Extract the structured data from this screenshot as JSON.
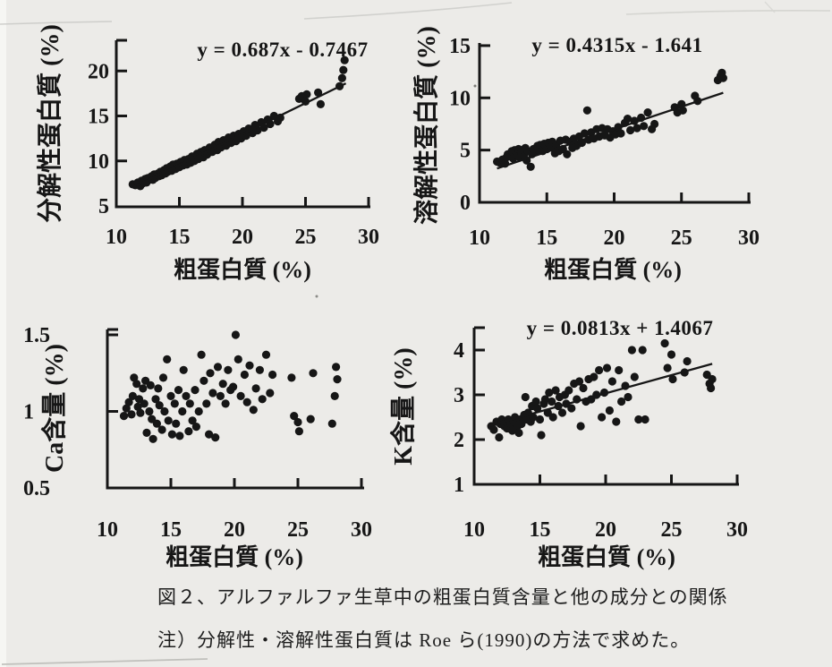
{
  "page": {
    "background": "#ecebe8",
    "ink": "#161616"
  },
  "figure": {
    "caption": "図２、アルファルファ生草中の粗蛋白質含量と他の成分との関係",
    "note": "注）分解性・溶解性蛋白質は Roe ら(1990)の方法で求めた。"
  },
  "chart_data": [
    {
      "type": "scatter",
      "title": "y = 0.687x - 0.7467",
      "xlabel": "粗蛋白質 (%)",
      "ylabel": "分解性蛋白質 (%)",
      "xlim": [
        10,
        30
      ],
      "ylim": [
        5,
        20
      ],
      "grid": false,
      "xticks": {
        "values": [
          10,
          15,
          20,
          25,
          30
        ],
        "labels": [
          "10",
          "15",
          "20",
          "25",
          "30"
        ]
      },
      "yticks": {
        "values": [
          5,
          10,
          15,
          20
        ],
        "labels": [
          "5",
          "10",
          "15",
          "20"
        ]
      },
      "x": [
        11.3,
        11.5,
        11.7,
        11.9,
        12.0,
        12.1,
        12.3,
        12.4,
        12.5,
        12.6,
        12.8,
        12.9,
        13.0,
        13.1,
        13.3,
        13.4,
        13.5,
        13.6,
        13.8,
        13.9,
        14.0,
        14.1,
        14.3,
        14.4,
        14.5,
        14.7,
        14.8,
        15.0,
        15.1,
        15.3,
        15.4,
        15.6,
        15.7,
        15.9,
        16.0,
        16.2,
        16.4,
        16.5,
        16.7,
        16.9,
        17.0,
        17.2,
        17.4,
        17.6,
        17.8,
        18.0,
        18.1,
        18.3,
        18.5,
        18.7,
        18.9,
        19.1,
        19.3,
        19.5,
        19.7,
        19.9,
        20.1,
        20.3,
        20.5,
        20.8,
        21.0,
        21.2,
        21.5,
        21.7,
        22.0,
        22.2,
        22.5,
        22.8,
        23.0,
        24.5,
        24.7,
        25.0,
        25.1,
        26.0,
        26.2,
        27.7,
        27.9,
        28.0,
        28.1
      ],
      "y": [
        7.4,
        7.3,
        7.6,
        7.2,
        7.8,
        7.5,
        8.0,
        7.6,
        8.1,
        7.9,
        8.3,
        7.9,
        8.5,
        8.1,
        8.6,
        8.3,
        8.8,
        8.4,
        9.0,
        8.6,
        9.2,
        8.8,
        9.4,
        8.9,
        9.6,
        9.1,
        9.7,
        9.3,
        9.9,
        9.5,
        10.1,
        9.6,
        10.2,
        9.8,
        10.5,
        10.0,
        10.8,
        10.2,
        11.0,
        10.4,
        11.2,
        10.7,
        11.5,
        11.0,
        11.8,
        11.2,
        12.1,
        11.5,
        12.3,
        11.7,
        12.6,
        12.0,
        12.8,
        12.2,
        13.0,
        12.5,
        13.3,
        12.8,
        13.6,
        13.1,
        14.0,
        13.4,
        14.3,
        13.7,
        14.6,
        14.1,
        15.0,
        14.4,
        14.8,
        16.9,
        17.2,
        16.6,
        17.4,
        17.6,
        16.3,
        18.3,
        19.2,
        20.1,
        21.2
      ],
      "trendline": {
        "equation": "y = 0.687x - 0.7467",
        "slope": 0.687,
        "intercept": -0.7467,
        "x_start": 11.6,
        "x_end": 28.2
      },
      "marker_color": "#161616"
    },
    {
      "type": "scatter",
      "title": "y = 0.4315x - 1.641",
      "xlabel": "粗蛋白質 (%)",
      "ylabel": "溶解性蛋白質 (%)",
      "xlim": [
        10,
        30
      ],
      "ylim": [
        0,
        15
      ],
      "grid": false,
      "xticks": {
        "values": [
          10,
          15,
          20,
          25,
          30
        ],
        "labels": [
          "10",
          "15",
          "20",
          "25",
          "30"
        ]
      },
      "yticks": {
        "values": [
          0,
          5,
          10,
          15
        ],
        "labels": [
          "0",
          "5",
          "10",
          "15"
        ]
      },
      "x": [
        11.3,
        11.5,
        11.7,
        11.9,
        12.0,
        12.1,
        12.3,
        12.4,
        12.5,
        12.6,
        12.8,
        12.9,
        13.0,
        13.1,
        13.3,
        13.4,
        13.5,
        13.6,
        13.8,
        13.9,
        14.0,
        14.1,
        14.3,
        14.4,
        14.5,
        14.7,
        14.8,
        15.0,
        15.1,
        15.3,
        15.4,
        15.6,
        15.7,
        15.9,
        16.0,
        16.2,
        16.4,
        16.5,
        16.7,
        16.9,
        17.0,
        17.2,
        17.4,
        17.6,
        17.8,
        18.0,
        18.1,
        18.3,
        18.5,
        18.7,
        18.9,
        19.1,
        19.3,
        19.5,
        19.7,
        19.9,
        20.1,
        20.3,
        20.5,
        20.8,
        21.0,
        21.2,
        21.5,
        21.7,
        22.0,
        22.2,
        22.5,
        22.8,
        23.0,
        24.5,
        24.7,
        25.0,
        25.1,
        26.0,
        26.2,
        27.7,
        27.9,
        28.0,
        28.1
      ],
      "y": [
        3.9,
        3.8,
        4.1,
        3.7,
        4.3,
        4.6,
        4.4,
        4.9,
        4.2,
        5.0,
        4.5,
        5.1,
        4.3,
        4.8,
        4.4,
        5.2,
        4.0,
        4.9,
        3.4,
        4.6,
        5.1,
        4.8,
        5.4,
        5.0,
        5.5,
        4.9,
        5.6,
        5.1,
        5.7,
        5.3,
        5.8,
        4.7,
        5.5,
        4.9,
        5.9,
        5.1,
        6.0,
        4.6,
        5.8,
        5.2,
        6.1,
        5.4,
        6.3,
        5.7,
        6.6,
        8.8,
        6.0,
        6.7,
        6.1,
        7.0,
        6.3,
        7.1,
        6.4,
        7.0,
        6.2,
        6.8,
        6.5,
        7.2,
        6.6,
        7.6,
        8.0,
        6.9,
        7.8,
        7.1,
        8.1,
        7.3,
        8.6,
        7.0,
        7.5,
        9.1,
        8.6,
        9.4,
        8.8,
        10.2,
        9.7,
        11.7,
        12.1,
        12.4,
        11.9
      ],
      "trendline": {
        "equation": "y = 0.4315x - 1.641",
        "slope": 0.4315,
        "intercept": -1.641,
        "x_start": 11.3,
        "x_end": 28.1
      },
      "marker_color": "#161616"
    },
    {
      "type": "scatter",
      "title": "",
      "xlabel": "粗蛋白質 (%)",
      "ylabel": "Ca含量 (%)",
      "xlim": [
        10,
        30
      ],
      "ylim": [
        0.5,
        1.5
      ],
      "grid": false,
      "xticks": {
        "values": [
          10,
          15,
          20,
          25,
          30
        ],
        "labels": [
          "10",
          "15",
          "20",
          "25",
          "30"
        ]
      },
      "yticks": {
        "values": [
          0.5,
          1,
          1.5
        ],
        "labels": [
          "0.5",
          "1",
          "1.5"
        ]
      },
      "x": [
        11.3,
        11.5,
        11.7,
        11.9,
        12.0,
        12.1,
        12.3,
        12.4,
        12.5,
        12.6,
        12.8,
        12.9,
        13.0,
        13.1,
        13.3,
        13.4,
        13.5,
        13.6,
        13.8,
        13.9,
        14.0,
        14.1,
        14.3,
        14.4,
        14.5,
        14.7,
        14.8,
        15.0,
        15.1,
        15.3,
        15.4,
        15.6,
        15.7,
        15.9,
        16.0,
        16.2,
        16.4,
        16.5,
        16.7,
        16.9,
        17.0,
        17.2,
        17.4,
        17.6,
        17.8,
        18.0,
        18.1,
        18.3,
        18.5,
        18.7,
        18.9,
        19.1,
        19.3,
        19.5,
        19.7,
        19.9,
        20.1,
        20.3,
        20.5,
        20.8,
        21.0,
        21.2,
        21.5,
        21.7,
        22.0,
        22.2,
        22.5,
        22.8,
        23.0,
        24.5,
        24.7,
        25.0,
        25.1,
        26.0,
        26.2,
        27.7,
        27.9,
        28.0,
        28.1
      ],
      "y": [
        0.97,
        1.02,
        1.06,
        0.98,
        1.1,
        1.22,
        1.18,
        1.03,
        1.08,
        0.99,
        1.15,
        1.05,
        1.2,
        0.86,
        1.0,
        1.17,
        0.95,
        0.82,
        1.08,
        0.92,
        1.15,
        1.04,
        0.88,
        1.22,
        1.0,
        1.34,
        0.94,
        1.1,
        0.85,
        1.05,
        0.92,
        1.14,
        0.84,
        1.0,
        1.27,
        1.1,
        0.87,
        1.05,
        0.94,
        1.14,
        0.9,
        1.0,
        1.37,
        1.2,
        1.05,
        0.85,
        1.25,
        1.12,
        0.83,
        1.29,
        1.1,
        1.18,
        1.05,
        1.27,
        1.14,
        1.16,
        1.5,
        1.34,
        1.1,
        1.24,
        1.06,
        1.3,
        1.01,
        1.15,
        1.27,
        1.08,
        1.37,
        1.12,
        1.24,
        1.22,
        0.97,
        0.93,
        0.87,
        0.95,
        1.25,
        0.92,
        1.1,
        1.29,
        1.21
      ],
      "trendline": null,
      "marker_color": "#161616"
    },
    {
      "type": "scatter",
      "title": "y = 0.0813x + 1.4067",
      "xlabel": "粗蛋白質 (%)",
      "ylabel": "K含量 (%)",
      "xlim": [
        10,
        30
      ],
      "ylim": [
        1,
        4
      ],
      "grid": false,
      "xticks": {
        "values": [
          10,
          15,
          20,
          25,
          30
        ],
        "labels": [
          "10",
          "15",
          "20",
          "25",
          "30"
        ]
      },
      "yticks": {
        "values": [
          1,
          2,
          3,
          4
        ],
        "labels": [
          "1",
          "2",
          "3",
          "4"
        ]
      },
      "x": [
        11.3,
        11.5,
        11.7,
        11.9,
        12.0,
        12.1,
        12.3,
        12.4,
        12.5,
        12.6,
        12.8,
        12.9,
        13.0,
        13.1,
        13.3,
        13.4,
        13.5,
        13.6,
        13.8,
        13.9,
        14.0,
        14.1,
        14.3,
        14.4,
        14.5,
        14.7,
        14.8,
        15.0,
        15.1,
        15.3,
        15.4,
        15.6,
        15.7,
        15.9,
        16.0,
        16.2,
        16.4,
        16.5,
        16.7,
        16.9,
        17.0,
        17.2,
        17.4,
        17.6,
        17.8,
        18.0,
        18.1,
        18.3,
        18.5,
        18.7,
        18.9,
        19.1,
        19.3,
        19.5,
        19.7,
        19.9,
        20.1,
        20.3,
        20.5,
        20.8,
        21.0,
        21.2,
        21.5,
        21.7,
        22.0,
        22.2,
        22.5,
        22.8,
        23.0,
        24.5,
        24.7,
        25.0,
        25.1,
        26.0,
        26.2,
        27.7,
        27.9,
        28.0,
        28.1
      ],
      "y": [
        2.3,
        2.22,
        2.4,
        2.05,
        2.35,
        2.45,
        2.3,
        2.4,
        2.25,
        2.45,
        2.35,
        2.2,
        2.4,
        2.5,
        2.3,
        2.15,
        2.45,
        2.35,
        2.55,
        2.95,
        2.45,
        2.6,
        2.4,
        2.75,
        2.5,
        2.85,
        2.7,
        2.45,
        2.1,
        2.8,
        2.9,
        2.6,
        3.05,
        2.85,
        2.5,
        3.1,
        2.75,
        2.95,
        2.6,
        3.0,
        2.8,
        3.1,
        2.7,
        3.25,
        2.9,
        3.3,
        2.3,
        3.15,
        2.85,
        3.35,
        2.9,
        3.4,
        3.0,
        3.55,
        2.5,
        3.05,
        3.6,
        2.65,
        3.3,
        2.4,
        3.55,
        2.85,
        3.2,
        2.95,
        4.0,
        3.4,
        2.45,
        4.0,
        2.45,
        4.15,
        3.6,
        3.9,
        3.35,
        3.5,
        3.75,
        3.45,
        3.25,
        3.15,
        3.35
      ],
      "trendline": {
        "equation": "y = 0.0813x + 1.4067",
        "slope": 0.0813,
        "intercept": 1.4067,
        "x_start": 11.0,
        "x_end": 28.1
      },
      "marker_color": "#161616"
    }
  ]
}
